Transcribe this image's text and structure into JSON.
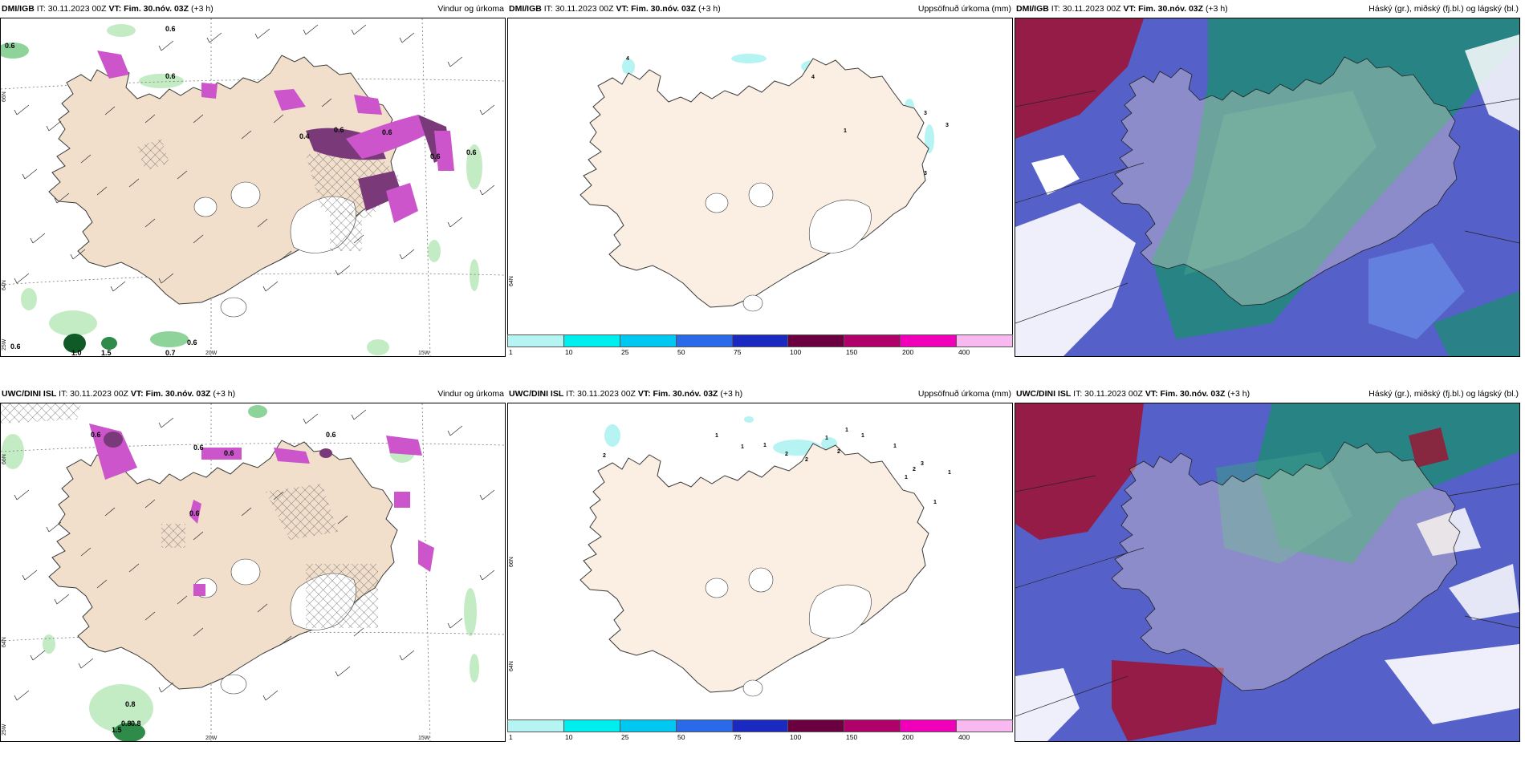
{
  "colors": {
    "land": "#f1dfcc",
    "sea": "#ffffff",
    "coast": "#3a3a3a",
    "snow_mask": "#ffffff",
    "precip_light": "#c4ecc4",
    "precip_mid": "#8ed49a",
    "precip_heavy": "#2e8b4a",
    "precip_dark": "#0f5a26",
    "snow_pink": "#cc55cc",
    "snow_purple": "#7a3a7a",
    "cloud_low_blue": "#5560c8",
    "cloud_mid": "#3a9a8a",
    "cloud_high": "#208a78",
    "cloud_red": "#a01030",
    "cloud_white": "#ffffff"
  },
  "panels": {
    "p1": {
      "model": "DMI/IGB",
      "it": "IT: 30.11.2023 00Z",
      "vt": "VT: Fim. 30.nóv. 03Z",
      "lead": "(+3 h)",
      "product": "Vindur og úrkoma"
    },
    "p2": {
      "model": "DMI/IGB",
      "it": "IT: 30.11.2023 00Z",
      "vt": "VT: Fim. 30.nóv. 03Z",
      "lead": "(+3 h)",
      "product": "Uppsöfnuð úrkoma (mm)"
    },
    "p3": {
      "model": "DMI/IGB",
      "it": "IT: 30.11.2023 00Z",
      "vt": "VT: Fim. 30.nóv. 03Z",
      "lead": "(+3 h)",
      "product": "Háský (gr.), miðský (fj.bl.) og lágský (bl.)"
    },
    "p4": {
      "model": "UWC/DINI ISL",
      "it": "IT: 30.11.2023 00Z",
      "vt": "VT: Fim. 30.nóv. 03Z",
      "lead": "(+3 h)",
      "product": "Vindur og úrkoma"
    },
    "p5": {
      "model": "UWC/DINI ISL",
      "it": "IT: 30.11.2023 00Z",
      "vt": "VT: Fim. 30.nóv. 03Z",
      "lead": "(+3 h)",
      "product": "Uppsöfnuð úrkoma (mm)"
    },
    "p6": {
      "model": "UWC/DINI ISL",
      "it": "IT: 30.11.2023 00Z",
      "vt": "VT: Fim. 30.nóv. 03Z",
      "lead": "(+3 h)",
      "product": "Háský (gr.), miðský (fj.bl.) og lágský (bl.)"
    }
  },
  "grid_labels": {
    "lat_top": "66N",
    "lat_bottom": "64N",
    "lat_bottom_alt": "64N",
    "lon_left": "25W",
    "lon_mid": "20W",
    "lon_right": "15W"
  },
  "p1_values": [
    "0.6",
    "0.6",
    "0.6",
    "0.6",
    "0.6",
    "0.4",
    "0.6",
    "0.6",
    "0.6",
    "0.7",
    "0.6",
    "1.0",
    "1.5"
  ],
  "p4_values": [
    "0.6",
    "0.6",
    "0.6",
    "0.6",
    "0.6",
    "0.8",
    "0.8",
    "0.8",
    "1.5"
  ],
  "p2_values": [
    "4",
    "1",
    "3",
    "3",
    "3",
    "4"
  ],
  "p5_values": [
    "1",
    "1",
    "1",
    "2",
    "2",
    "1",
    "2",
    "1",
    "1",
    "1",
    "3",
    "2",
    "1",
    "1",
    "1",
    "2"
  ],
  "legend": {
    "ticks": [
      "1",
      "10",
      "25",
      "50",
      "75",
      "100",
      "150",
      "200",
      "400"
    ],
    "colors": [
      "#b6f4f4",
      "#00eeee",
      "#00c8f0",
      "#2a6ae8",
      "#1a2ac0",
      "#6a0040",
      "#b0006a",
      "#f000b8",
      "#f8b8f0"
    ]
  }
}
